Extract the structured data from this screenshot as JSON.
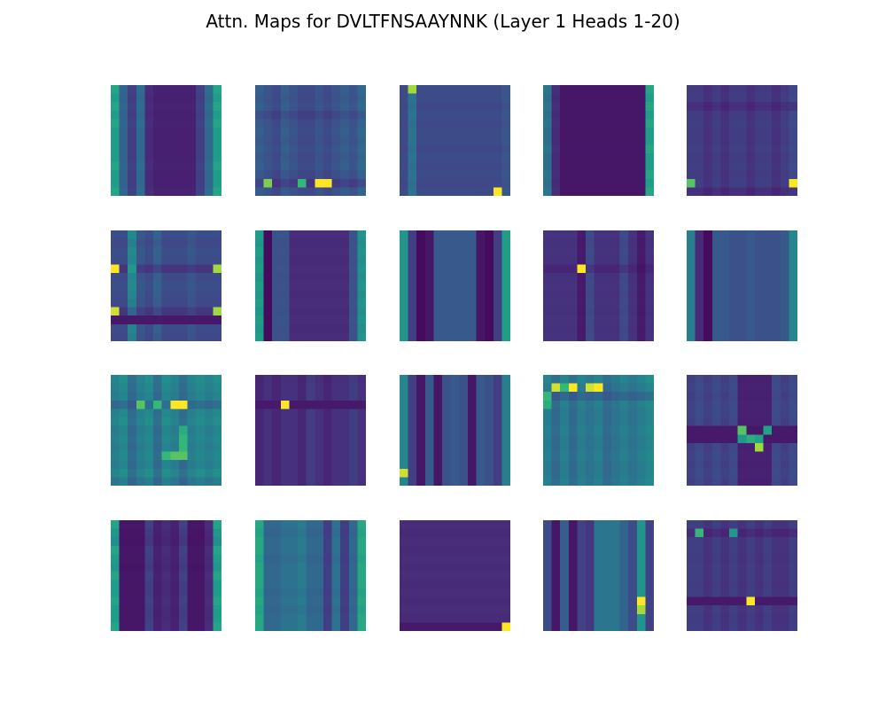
{
  "title": "Attn. Maps for DVLTFNSAAYNNK (Layer 1 Heads 1-20)",
  "chart_data": {
    "type": "heatmap",
    "title": "Attn. Maps for DVLTFNSAAYNNK (Layer 1 Heads 1-20)",
    "sequence": "DVLTFNSAAYNNK",
    "layer": 1,
    "colormap": "viridis",
    "value_range": [
      0,
      1
    ],
    "grid_rows": 4,
    "grid_cols": 5,
    "matrix_size": 13,
    "axes_visible": false,
    "maps": [
      {
        "head": 1,
        "col_w": [
          0.9,
          0.5,
          0.3,
          0.55,
          0.2,
          0.15,
          0.15,
          0.15,
          0.15,
          0.15,
          0.3,
          0.55,
          0.9
        ],
        "row_w": [
          0.35,
          0.3,
          0.35,
          0.3,
          0.35,
          0.3,
          0.3,
          0.3,
          0.3,
          0.35,
          0.3,
          0.3,
          0.35
        ],
        "hot": []
      },
      {
        "head": 2,
        "col_w": [
          0.4,
          0.35,
          0.3,
          0.4,
          0.35,
          0.3,
          0.3,
          0.35,
          0.3,
          0.35,
          0.4,
          0.35,
          0.45
        ],
        "row_w": [
          0.5,
          0.45,
          0.5,
          0.3,
          0.45,
          0.5,
          0.45,
          0.5,
          0.45,
          0.5,
          0.4,
          0.15,
          0.45
        ],
        "hot": [
          [
            11,
            1,
            0.85
          ],
          [
            11,
            5,
            0.75
          ],
          [
            11,
            7,
            1.0
          ],
          [
            11,
            8,
            1.0
          ]
        ]
      },
      {
        "head": 3,
        "col_w": [
          0.3,
          0.5,
          0.3,
          0.3,
          0.3,
          0.3,
          0.3,
          0.3,
          0.3,
          0.3,
          0.3,
          0.3,
          0.35
        ],
        "row_w": [
          0.5,
          0.5,
          0.45,
          0.5,
          0.45,
          0.5,
          0.5,
          0.45,
          0.5,
          0.45,
          0.5,
          0.45,
          0.5
        ],
        "hot": [
          [
            0,
            1,
            0.9
          ],
          [
            12,
            11,
            1.0
          ]
        ]
      },
      {
        "head": 4,
        "col_w": [
          0.6,
          0.2,
          0.1,
          0.1,
          0.1,
          0.1,
          0.1,
          0.1,
          0.1,
          0.1,
          0.1,
          0.1,
          0.9
        ],
        "row_w": [
          0.35,
          0.3,
          0.35,
          0.3,
          0.35,
          0.3,
          0.3,
          0.35,
          0.3,
          0.3,
          0.35,
          0.3,
          0.35
        ],
        "hot": []
      },
      {
        "head": 5,
        "col_w": [
          0.25,
          0.25,
          0.2,
          0.25,
          0.2,
          0.25,
          0.25,
          0.2,
          0.25,
          0.25,
          0.2,
          0.25,
          0.3
        ],
        "row_w": [
          0.4,
          0.45,
          0.2,
          0.45,
          0.5,
          0.45,
          0.45,
          0.5,
          0.45,
          0.5,
          0.45,
          0.5,
          0.2
        ],
        "hot": [
          [
            11,
            0,
            0.8
          ],
          [
            11,
            12,
            1.0
          ]
        ]
      },
      {
        "head": 6,
        "col_w": [
          0.3,
          0.3,
          0.6,
          0.35,
          0.3,
          0.4,
          0.3,
          0.3,
          0.3,
          0.35,
          0.3,
          0.3,
          0.3
        ],
        "row_w": [
          0.55,
          0.45,
          0.55,
          0.5,
          0.15,
          0.5,
          0.55,
          0.5,
          0.45,
          0.2,
          0.1,
          0.5,
          0.45
        ],
        "hot": [
          [
            4,
            0,
            1.0
          ],
          [
            4,
            12,
            0.9
          ],
          [
            9,
            0,
            0.95
          ],
          [
            9,
            12,
            0.9
          ],
          [
            4,
            2,
            0.6
          ]
        ]
      },
      {
        "head": 7,
        "col_w": [
          0.85,
          0.05,
          0.4,
          0.4,
          0.2,
          0.2,
          0.2,
          0.2,
          0.2,
          0.2,
          0.2,
          0.4,
          0.8
        ],
        "row_w": [
          0.35,
          0.3,
          0.35,
          0.3,
          0.35,
          0.3,
          0.35,
          0.3,
          0.35,
          0.3,
          0.35,
          0.3,
          0.35
        ],
        "hot": []
      },
      {
        "head": 8,
        "col_w": [
          0.85,
          0.3,
          0.05,
          0.1,
          0.45,
          0.45,
          0.45,
          0.45,
          0.45,
          0.1,
          0.05,
          0.3,
          0.9
        ],
        "row_w": [
          0.3,
          0.3,
          0.3,
          0.3,
          0.3,
          0.3,
          0.3,
          0.3,
          0.3,
          0.3,
          0.3,
          0.3,
          0.3
        ],
        "hot": []
      },
      {
        "head": 9,
        "col_w": [
          0.2,
          0.2,
          0.2,
          0.2,
          0.1,
          0.3,
          0.2,
          0.2,
          0.2,
          0.3,
          0.2,
          0.1,
          0.2
        ],
        "row_w": [
          0.5,
          0.45,
          0.5,
          0.45,
          0.2,
          0.45,
          0.5,
          0.45,
          0.5,
          0.45,
          0.5,
          0.45,
          0.5
        ],
        "hot": [
          [
            4,
            4,
            1.0
          ]
        ]
      },
      {
        "head": 10,
        "col_w": [
          0.7,
          0.2,
          0.05,
          0.45,
          0.45,
          0.4,
          0.4,
          0.45,
          0.4,
          0.4,
          0.4,
          0.45,
          0.75
        ],
        "row_w": [
          0.3,
          0.3,
          0.3,
          0.3,
          0.3,
          0.3,
          0.3,
          0.3,
          0.3,
          0.3,
          0.3,
          0.3,
          0.3
        ],
        "hot": []
      },
      {
        "head": 11,
        "col_w": [
          0.55,
          0.6,
          0.45,
          0.55,
          0.6,
          0.45,
          0.6,
          0.55,
          0.45,
          0.55,
          0.6,
          0.55,
          0.6
        ],
        "row_w": [
          0.6,
          0.55,
          0.5,
          0.3,
          0.55,
          0.6,
          0.5,
          0.55,
          0.5,
          0.55,
          0.5,
          0.6,
          0.45
        ],
        "hot": [
          [
            3,
            7,
            1.0
          ],
          [
            3,
            8,
            1.0
          ],
          [
            3,
            3,
            0.8
          ],
          [
            3,
            5,
            0.75
          ],
          [
            9,
            6,
            0.75
          ],
          [
            9,
            7,
            0.8
          ],
          [
            9,
            8,
            0.8
          ],
          [
            6,
            8,
            0.7
          ],
          [
            7,
            8,
            0.75
          ],
          [
            8,
            8,
            0.75
          ]
        ]
      },
      {
        "head": 12,
        "col_w": [
          0.15,
          0.2,
          0.15,
          0.2,
          0.2,
          0.15,
          0.25,
          0.2,
          0.15,
          0.2,
          0.2,
          0.25,
          0.2
        ],
        "row_w": [
          0.4,
          0.45,
          0.45,
          0.1,
          0.45,
          0.45,
          0.45,
          0.45,
          0.45,
          0.45,
          0.45,
          0.45,
          0.45
        ],
        "hot": [
          [
            3,
            3,
            1.0
          ]
        ]
      },
      {
        "head": 13,
        "col_w": [
          0.75,
          0.3,
          0.1,
          0.45,
          0.1,
          0.4,
          0.45,
          0.4,
          0.1,
          0.45,
          0.4,
          0.3,
          0.7
        ],
        "row_w": [
          0.3,
          0.3,
          0.3,
          0.3,
          0.3,
          0.3,
          0.3,
          0.3,
          0.3,
          0.3,
          0.3,
          0.3,
          0.3
        ],
        "hot": [
          [
            11,
            0,
            0.95
          ]
        ]
      },
      {
        "head": 14,
        "col_w": [
          0.55,
          0.45,
          0.55,
          0.45,
          0.55,
          0.5,
          0.55,
          0.45,
          0.5,
          0.55,
          0.5,
          0.55,
          0.6
        ],
        "row_w": [
          0.6,
          0.5,
          0.3,
          0.55,
          0.5,
          0.5,
          0.55,
          0.5,
          0.5,
          0.55,
          0.5,
          0.5,
          0.55
        ],
        "hot": [
          [
            1,
            1,
            0.95
          ],
          [
            1,
            2,
            0.75
          ],
          [
            1,
            3,
            1.0
          ],
          [
            1,
            5,
            0.95
          ],
          [
            1,
            6,
            1.0
          ],
          [
            2,
            0,
            0.75
          ],
          [
            3,
            0,
            0.7
          ]
        ]
      },
      {
        "head": 15,
        "col_w": [
          0.3,
          0.35,
          0.3,
          0.35,
          0.3,
          0.35,
          0.15,
          0.15,
          0.15,
          0.15,
          0.35,
          0.3,
          0.35
        ],
        "row_w": [
          0.3,
          0.35,
          0.3,
          0.35,
          0.35,
          0.3,
          0.05,
          0.05,
          0.3,
          0.35,
          0.3,
          0.35,
          0.3
        ],
        "hot": [
          [
            6,
            6,
            0.8
          ],
          [
            7,
            7,
            0.7
          ],
          [
            6,
            9,
            0.65
          ],
          [
            7,
            8,
            0.65
          ],
          [
            8,
            8,
            0.9
          ],
          [
            7,
            6,
            0.6
          ]
        ]
      },
      {
        "head": 16,
        "col_w": [
          0.9,
          0.1,
          0.1,
          0.1,
          0.3,
          0.15,
          0.2,
          0.15,
          0.3,
          0.1,
          0.1,
          0.2,
          0.9
        ],
        "row_w": [
          0.35,
          0.25,
          0.2,
          0.35,
          0.3,
          0.25,
          0.35,
          0.3,
          0.3,
          0.35,
          0.3,
          0.3,
          0.35
        ],
        "hot": []
      },
      {
        "head": 17,
        "col_w": [
          0.8,
          0.45,
          0.45,
          0.5,
          0.5,
          0.55,
          0.45,
          0.45,
          0.25,
          0.5,
          0.25,
          0.45,
          0.8
        ],
        "row_w": [
          0.5,
          0.45,
          0.5,
          0.5,
          0.45,
          0.5,
          0.5,
          0.5,
          0.45,
          0.5,
          0.45,
          0.5,
          0.5
        ],
        "hot": []
      },
      {
        "head": 18,
        "col_w": [
          0.2,
          0.2,
          0.2,
          0.2,
          0.2,
          0.2,
          0.2,
          0.2,
          0.2,
          0.2,
          0.2,
          0.2,
          0.2
        ],
        "row_w": [
          0.35,
          0.3,
          0.35,
          0.3,
          0.35,
          0.3,
          0.35,
          0.3,
          0.35,
          0.3,
          0.35,
          0.3,
          0.05
        ],
        "hot": [
          [
            12,
            12,
            1.0
          ]
        ]
      },
      {
        "head": 19,
        "col_w": [
          0.35,
          0.1,
          0.45,
          0.1,
          0.3,
          0.25,
          0.6,
          0.6,
          0.6,
          0.5,
          0.35,
          0.8,
          0.3
        ],
        "row_w": [
          0.35,
          0.35,
          0.35,
          0.35,
          0.35,
          0.35,
          0.35,
          0.35,
          0.35,
          0.35,
          0.35,
          0.35,
          0.35
        ],
        "hot": [
          [
            9,
            11,
            1.0
          ],
          [
            10,
            11,
            0.9
          ]
        ]
      },
      {
        "head": 20,
        "col_w": [
          0.25,
          0.25,
          0.2,
          0.25,
          0.2,
          0.25,
          0.2,
          0.25,
          0.2,
          0.25,
          0.2,
          0.2,
          0.25
        ],
        "row_w": [
          0.5,
          0.15,
          0.5,
          0.5,
          0.45,
          0.5,
          0.5,
          0.45,
          0.5,
          0.1,
          0.5,
          0.45,
          0.5
        ],
        "hot": [
          [
            1,
            1,
            0.75
          ],
          [
            1,
            5,
            0.6
          ],
          [
            9,
            7,
            1.0
          ]
        ]
      }
    ]
  }
}
